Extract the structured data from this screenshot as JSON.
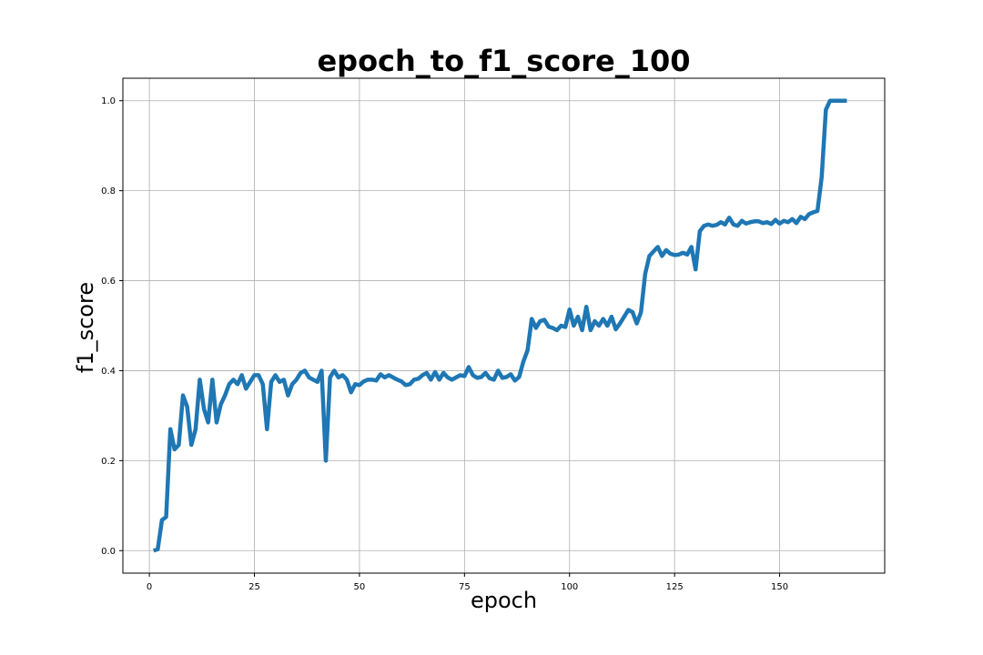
{
  "chart_data": {
    "type": "line",
    "title": "epoch_to_f1_score_100",
    "xlabel": "epoch",
    "ylabel": "f1_score",
    "xlim": [
      -6.3,
      175
    ],
    "ylim": [
      -0.05,
      1.05
    ],
    "xticks": [
      0,
      25,
      50,
      75,
      100,
      125,
      150
    ],
    "yticks": [
      0.0,
      0.2,
      0.4,
      0.6,
      0.8,
      1.0
    ],
    "grid": true,
    "color": "#1f77b4",
    "series": [
      {
        "x": [
          1,
          2,
          3,
          4,
          5,
          6,
          7,
          8,
          9,
          10,
          11,
          12,
          13,
          14,
          15,
          16,
          17,
          18,
          19,
          20,
          21,
          22,
          23,
          24,
          25,
          26,
          27,
          28,
          29,
          30,
          31,
          32,
          33,
          34,
          35,
          36,
          37,
          38,
          39,
          40,
          41,
          42,
          43,
          44,
          45,
          46,
          47,
          48,
          49,
          50,
          51,
          52,
          53,
          54,
          55,
          56,
          57,
          58,
          59,
          60,
          61,
          62,
          63,
          64,
          65,
          66,
          67,
          68,
          69,
          70,
          71,
          72,
          73,
          74,
          75,
          76,
          77,
          78,
          79,
          80,
          81,
          82,
          83,
          84,
          85,
          86,
          87,
          88,
          89,
          90,
          91,
          92,
          93,
          94,
          95,
          96,
          97,
          98,
          99,
          100,
          101,
          102,
          103,
          104,
          105,
          106,
          107,
          108,
          109,
          110,
          111,
          112,
          113,
          114,
          115,
          116,
          117,
          118,
          119,
          120,
          121,
          122,
          123,
          124,
          125,
          126,
          127,
          128,
          129,
          130,
          131,
          132,
          133,
          134,
          135,
          136,
          137,
          138,
          139,
          140,
          141,
          142,
          143,
          144,
          145,
          146,
          147,
          148,
          149,
          150,
          151,
          152,
          153,
          154,
          155,
          156,
          157,
          158,
          159,
          160,
          161,
          162,
          163,
          164,
          165,
          166
        ],
        "y": [
          0.0,
          0.003,
          0.068,
          0.075,
          0.27,
          0.225,
          0.235,
          0.345,
          0.32,
          0.235,
          0.27,
          0.38,
          0.315,
          0.285,
          0.38,
          0.285,
          0.325,
          0.345,
          0.37,
          0.38,
          0.37,
          0.39,
          0.36,
          0.375,
          0.39,
          0.39,
          0.37,
          0.27,
          0.375,
          0.39,
          0.375,
          0.38,
          0.345,
          0.37,
          0.38,
          0.395,
          0.4,
          0.385,
          0.38,
          0.375,
          0.4,
          0.2,
          0.385,
          0.4,
          0.385,
          0.39,
          0.38,
          0.352,
          0.37,
          0.368,
          0.376,
          0.38,
          0.38,
          0.378,
          0.392,
          0.385,
          0.39,
          0.385,
          0.38,
          0.376,
          0.368,
          0.37,
          0.38,
          0.382,
          0.39,
          0.395,
          0.38,
          0.397,
          0.38,
          0.395,
          0.385,
          0.38,
          0.385,
          0.39,
          0.388,
          0.408,
          0.39,
          0.384,
          0.386,
          0.395,
          0.383,
          0.38,
          0.4,
          0.384,
          0.386,
          0.392,
          0.378,
          0.386,
          0.42,
          0.445,
          0.515,
          0.495,
          0.51,
          0.513,
          0.498,
          0.495,
          0.49,
          0.5,
          0.497,
          0.536,
          0.5,
          0.52,
          0.49,
          0.542,
          0.49,
          0.51,
          0.5,
          0.515,
          0.5,
          0.52,
          0.492,
          0.505,
          0.52,
          0.535,
          0.53,
          0.505,
          0.53,
          0.615,
          0.655,
          0.665,
          0.675,
          0.655,
          0.668,
          0.66,
          0.657,
          0.658,
          0.662,
          0.658,
          0.675,
          0.625,
          0.71,
          0.722,
          0.725,
          0.722,
          0.724,
          0.73,
          0.725,
          0.74,
          0.725,
          0.722,
          0.733,
          0.727,
          0.73,
          0.732,
          0.732,
          0.728,
          0.73,
          0.726,
          0.735,
          0.727,
          0.733,
          0.73,
          0.737,
          0.728,
          0.742,
          0.737,
          0.748,
          0.752,
          0.755,
          0.83,
          0.98,
          1.0,
          1.0,
          1.0,
          1.0,
          1.0
        ]
      }
    ]
  }
}
